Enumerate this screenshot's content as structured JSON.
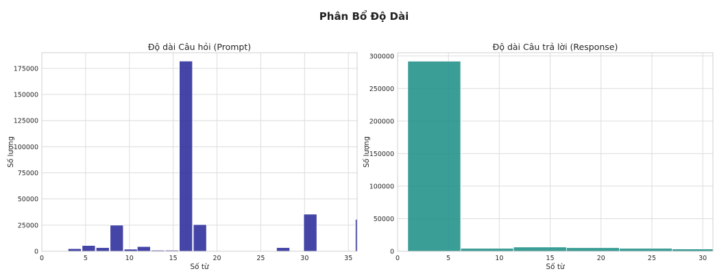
{
  "figure_title": "Phân Bổ Độ Dài",
  "chart_data": [
    {
      "type": "bar",
      "title": "Độ dài Câu hỏi (Prompt)",
      "xlabel": "Số từ",
      "ylabel": "Số lượng",
      "xlim": [
        0,
        36
      ],
      "ylim": [
        0,
        190000
      ],
      "xticks": [
        0,
        5,
        10,
        15,
        20,
        25,
        30,
        35
      ],
      "yticks": [
        0,
        25000,
        50000,
        75000,
        100000,
        125000,
        150000,
        175000
      ],
      "grid": true,
      "color": "#2b2b9b",
      "bins": [
        {
          "x0": 3.0,
          "x1": 4.5,
          "value": 2500
        },
        {
          "x0": 4.6,
          "x1": 6.1,
          "value": 5500
        },
        {
          "x0": 6.2,
          "x1": 7.7,
          "value": 3500
        },
        {
          "x0": 7.8,
          "x1": 9.3,
          "value": 25000
        },
        {
          "x0": 9.4,
          "x1": 10.9,
          "value": 2000
        },
        {
          "x0": 10.9,
          "x1": 12.4,
          "value": 4500
        },
        {
          "x0": 12.5,
          "x1": 14.0,
          "value": 1000
        },
        {
          "x0": 14.1,
          "x1": 15.6,
          "value": 1000
        },
        {
          "x0": 15.7,
          "x1": 17.2,
          "value": 182000
        },
        {
          "x0": 17.3,
          "x1": 18.8,
          "value": 25500
        },
        {
          "x0": 26.8,
          "x1": 28.3,
          "value": 3500
        },
        {
          "x0": 29.9,
          "x1": 31.4,
          "value": 35500
        },
        {
          "x0": 35.8,
          "x1": 36.0,
          "value": 30500
        }
      ]
    },
    {
      "type": "bar",
      "title": "Độ dài Câu trả lời (Response)",
      "xlabel": "Số từ",
      "ylabel": "Số lượng",
      "xlim": [
        0,
        31
      ],
      "ylim": [
        0,
        305000
      ],
      "xticks": [
        0,
        5,
        10,
        15,
        20,
        25,
        30
      ],
      "yticks": [
        0,
        50000,
        100000,
        150000,
        200000,
        250000,
        300000
      ],
      "grid": true,
      "color": "#1f8f88",
      "bins": [
        {
          "x0": 1.0,
          "x1": 6.2,
          "value": 292000
        },
        {
          "x0": 6.2,
          "x1": 11.4,
          "value": 4500
        },
        {
          "x0": 11.4,
          "x1": 16.6,
          "value": 6500
        },
        {
          "x0": 16.6,
          "x1": 21.8,
          "value": 5500
        },
        {
          "x0": 21.8,
          "x1": 27.0,
          "value": 4500
        },
        {
          "x0": 27.0,
          "x1": 31.0,
          "value": 3500
        }
      ]
    }
  ]
}
